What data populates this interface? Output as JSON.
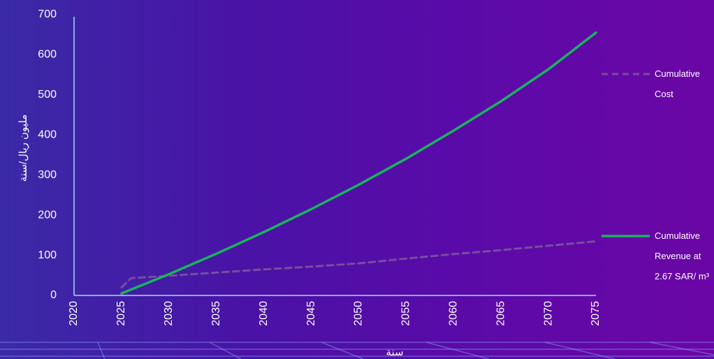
{
  "chart_data": {
    "type": "line",
    "title": "",
    "xlabel": "سنة",
    "ylabel": "مليون ريال/سنة",
    "xlim": [
      2020,
      2075
    ],
    "ylim": [
      0,
      700
    ],
    "x_ticks": [
      "2020",
      "2025",
      "2030",
      "2035",
      "2040",
      "2045",
      "2050",
      "2055",
      "2060",
      "2065",
      "2070",
      "2075"
    ],
    "y_ticks": [
      "0",
      "100",
      "200",
      "300",
      "400",
      "500",
      "600",
      "700"
    ],
    "grid": false,
    "legend_position": "right",
    "series": [
      {
        "name": "Cumulative Cost",
        "legend_lines": [
          "Cumulative",
          "Cost"
        ],
        "style": "dashed",
        "color": "#7a4c9e",
        "x": [
          2025,
          2026,
          2030,
          2035,
          2040,
          2045,
          2050,
          2055,
          2060,
          2065,
          2070,
          2075
        ],
        "y": [
          20,
          43,
          49,
          57,
          65,
          72,
          80,
          92,
          103,
          113,
          124,
          135
        ]
      },
      {
        "name": "Cumulative Revenue at 2.67 SAR/ m³",
        "legend_lines": [
          "Cumulative",
          "Revenue at",
          "2.67 SAR/ m³"
        ],
        "style": "solid",
        "color": "#19b55c",
        "x": [
          2025,
          2030,
          2035,
          2040,
          2045,
          2050,
          2055,
          2060,
          2065,
          2070,
          2075
        ],
        "y": [
          5,
          53,
          104,
          158,
          215,
          276,
          341,
          411,
          484,
          564,
          655
        ]
      }
    ]
  }
}
